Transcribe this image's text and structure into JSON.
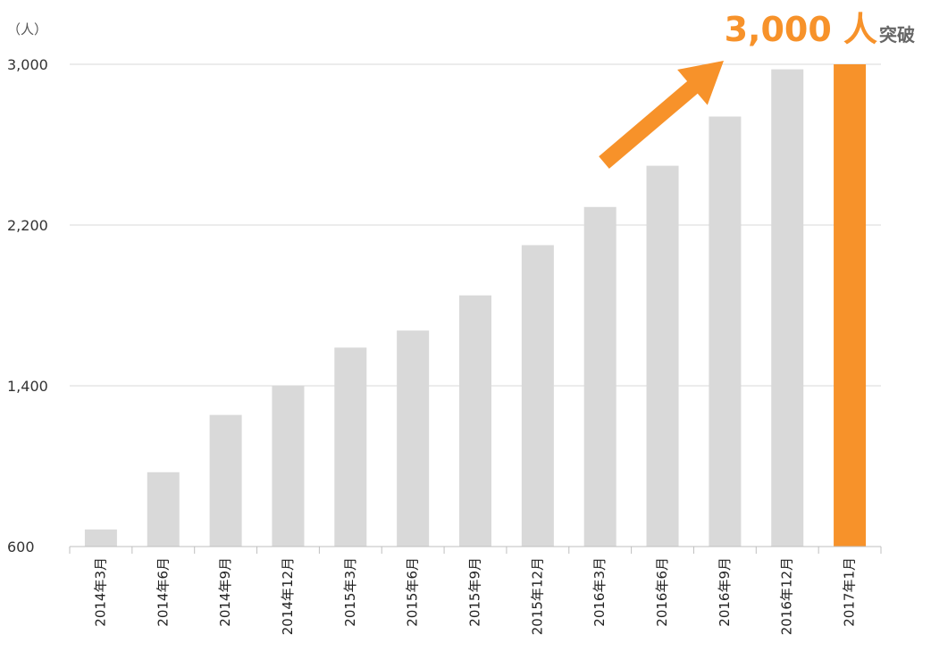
{
  "chart_data": {
    "type": "bar",
    "categories": [
      "2014年3月",
      "2014年6月",
      "2014年9月",
      "2014年12月",
      "2015年3月",
      "2015年6月",
      "2015年9月",
      "2015年12月",
      "2016年3月",
      "2016年6月",
      "2016年9月",
      "2016年12月",
      "2017年1月"
    ],
    "values": [
      685,
      970,
      1255,
      1400,
      1590,
      1675,
      1850,
      2100,
      2290,
      2495,
      2740,
      2975,
      3000
    ],
    "highlight_index": 12,
    "ylim": [
      600,
      3000
    ],
    "yticks": [
      "600",
      "1,400",
      "2,200",
      "3,000"
    ],
    "ytick_values": [
      600,
      1400,
      2200,
      3000
    ],
    "grid": true,
    "colors": {
      "bar": "#d9d9d9",
      "highlight": "#f7922a",
      "grid": "#d9d9d9"
    }
  },
  "unit_label": "（人）",
  "headline": {
    "number": "3,000 人",
    "suffix": "突破"
  },
  "arrow": {
    "color": "#f7922a"
  }
}
